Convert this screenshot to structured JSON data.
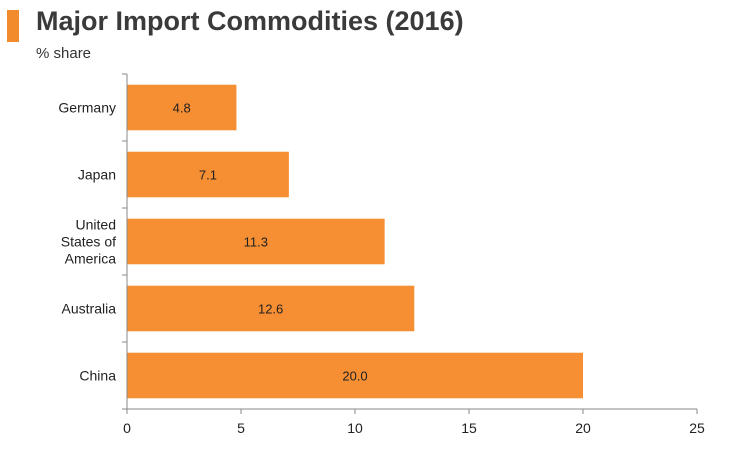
{
  "header": {
    "title": "Major Import Commodities (2016)",
    "subtitle": "% share"
  },
  "colors": {
    "accent": "#f28b2c",
    "bar": "#f68f33",
    "axis": "#888888",
    "text": "#222222"
  },
  "chart_data": {
    "type": "bar",
    "orientation": "horizontal",
    "title": "Major Import Commodities (2016)",
    "subtitle": "% share",
    "categories": [
      [
        "Germany"
      ],
      [
        "Japan"
      ],
      [
        "United",
        "States of",
        "America"
      ],
      [
        "Australia"
      ],
      [
        "China"
      ]
    ],
    "values": [
      4.8,
      7.1,
      11.3,
      12.6,
      20.0
    ],
    "value_labels": [
      "4.8",
      "7.1",
      "11.3",
      "12.6",
      "20.0"
    ],
    "xlim": [
      0,
      25
    ],
    "xticks": [
      0,
      5,
      10,
      15,
      20,
      25
    ],
    "xtick_labels": [
      "0",
      "5",
      "10",
      "15",
      "20",
      "25"
    ],
    "grid": false,
    "legend": "none"
  }
}
